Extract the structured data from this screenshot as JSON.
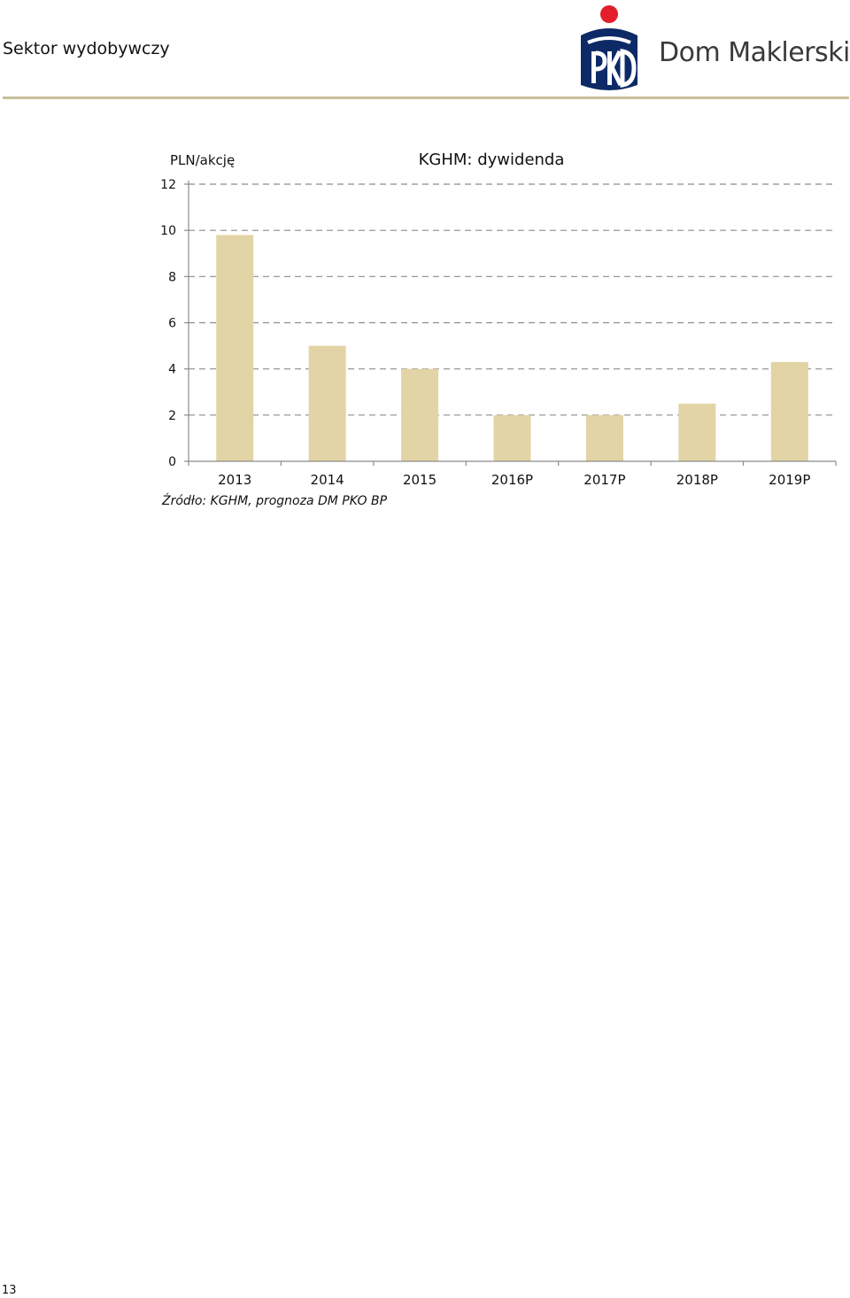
{
  "header": {
    "section_title": "Sektor wydobywczy",
    "brand_name": "Dom Maklerski",
    "brand_colors": {
      "navy": "#0d2a67",
      "red": "#e31e2d"
    }
  },
  "chart_data": {
    "type": "bar",
    "title": "KGHM: dywidenda",
    "ylabel": "PLN/akcję",
    "xlabel": "",
    "categories": [
      "2013",
      "2014",
      "2015",
      "2016P",
      "2017P",
      "2018P",
      "2019P"
    ],
    "values": [
      9.8,
      5.0,
      4.0,
      2.0,
      2.0,
      2.5,
      4.3
    ],
    "ylim": [
      0,
      12
    ],
    "yticks": [
      0,
      2,
      4,
      6,
      8,
      10,
      12
    ],
    "grid": true,
    "bar_color": "#e2d4a6",
    "legend": "none"
  },
  "source_note": "Źródło: KGHM, prognoza DM PKO BP",
  "page_number": "13"
}
